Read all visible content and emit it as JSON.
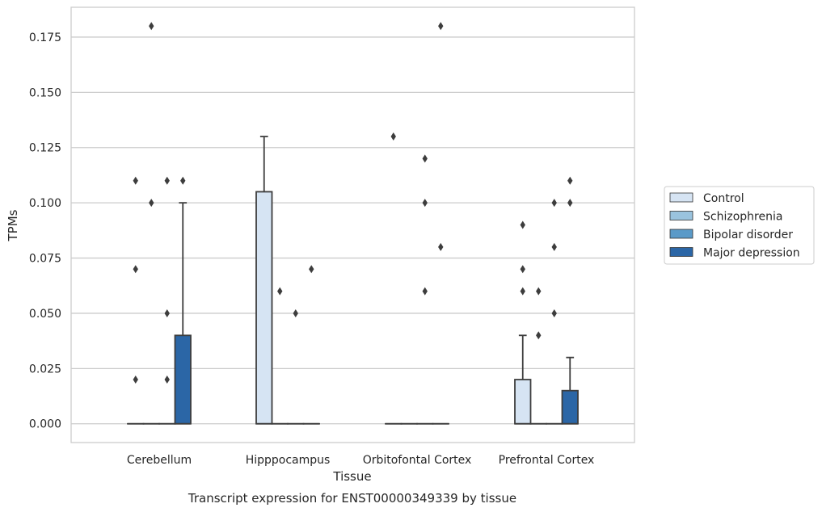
{
  "chart_data": {
    "type": "box",
    "caption": "Transcript expression for ENST00000349339 by tissue",
    "xlabel": "Tissue",
    "ylabel": "TPMs",
    "ylim": [
      -0.0085,
      0.1885
    ],
    "yticks": [
      0.0,
      0.025,
      0.05,
      0.075,
      0.1,
      0.125,
      0.15,
      0.175
    ],
    "ytick_labels": [
      "0.000",
      "0.025",
      "0.050",
      "0.075",
      "0.100",
      "0.125",
      "0.150",
      "0.175"
    ],
    "grid": "horizontal",
    "legend_position": "right",
    "categories": [
      "Cerebellum",
      "Hipppocampus",
      "Orbitofontal Cortex",
      "Prefrontal Cortex"
    ],
    "series": [
      {
        "name": "Control",
        "color": "#d6e4f3"
      },
      {
        "name": "Schizophrenia",
        "color": "#9ac3de"
      },
      {
        "name": "Bipolar disorder",
        "color": "#5a9ac8"
      },
      {
        "name": "Major depression",
        "color": "#2b66a6"
      }
    ],
    "boxes": [
      {
        "category": 0,
        "series": 0,
        "q1": 0,
        "median": 0,
        "q3": 0,
        "whisker_low": 0,
        "whisker_high": 0,
        "outliers": [
          0.02,
          0.07,
          0.11
        ]
      },
      {
        "category": 0,
        "series": 1,
        "q1": 0,
        "median": 0,
        "q3": 0,
        "whisker_low": 0,
        "whisker_high": 0,
        "outliers": [
          0.1,
          0.18
        ]
      },
      {
        "category": 0,
        "series": 2,
        "q1": 0,
        "median": 0,
        "q3": 0,
        "whisker_low": 0,
        "whisker_high": 0,
        "outliers": [
          0.02,
          0.05,
          0.11
        ]
      },
      {
        "category": 0,
        "series": 3,
        "q1": 0,
        "median": 0,
        "q3": 0.04,
        "whisker_low": 0,
        "whisker_high": 0.1,
        "outliers": [
          0.11
        ]
      },
      {
        "category": 1,
        "series": 0,
        "q1": 0,
        "median": 0,
        "q3": 0.105,
        "whisker_low": 0,
        "whisker_high": 0.13,
        "outliers": []
      },
      {
        "category": 1,
        "series": 1,
        "q1": 0,
        "median": 0,
        "q3": 0,
        "whisker_low": 0,
        "whisker_high": 0,
        "outliers": [
          0.06
        ]
      },
      {
        "category": 1,
        "series": 2,
        "q1": 0,
        "median": 0,
        "q3": 0,
        "whisker_low": 0,
        "whisker_high": 0,
        "outliers": [
          0.05
        ]
      },
      {
        "category": 1,
        "series": 3,
        "q1": 0,
        "median": 0,
        "q3": 0,
        "whisker_low": 0,
        "whisker_high": 0,
        "outliers": [
          0.07
        ]
      },
      {
        "category": 2,
        "series": 0,
        "q1": 0,
        "median": 0,
        "q3": 0,
        "whisker_low": 0,
        "whisker_high": 0,
        "outliers": [
          0.13
        ]
      },
      {
        "category": 2,
        "series": 1,
        "q1": 0,
        "median": 0,
        "q3": 0,
        "whisker_low": 0,
        "whisker_high": 0,
        "outliers": []
      },
      {
        "category": 2,
        "series": 2,
        "q1": 0,
        "median": 0,
        "q3": 0,
        "whisker_low": 0,
        "whisker_high": 0,
        "outliers": [
          0.06,
          0.1,
          0.12
        ]
      },
      {
        "category": 2,
        "series": 3,
        "q1": 0,
        "median": 0,
        "q3": 0,
        "whisker_low": 0,
        "whisker_high": 0,
        "outliers": [
          0.08,
          0.18
        ]
      },
      {
        "category": 3,
        "series": 0,
        "q1": 0,
        "median": 0,
        "q3": 0.02,
        "whisker_low": 0,
        "whisker_high": 0.04,
        "outliers": [
          0.06,
          0.07,
          0.09
        ]
      },
      {
        "category": 3,
        "series": 1,
        "q1": 0,
        "median": 0,
        "q3": 0,
        "whisker_low": 0,
        "whisker_high": 0,
        "outliers": [
          0.04,
          0.06
        ]
      },
      {
        "category": 3,
        "series": 2,
        "q1": 0,
        "median": 0,
        "q3": 0,
        "whisker_low": 0,
        "whisker_high": 0,
        "outliers": [
          0.05,
          0.08,
          0.1
        ]
      },
      {
        "category": 3,
        "series": 3,
        "q1": 0,
        "median": 0,
        "q3": 0.015,
        "whisker_low": 0,
        "whisker_high": 0.03,
        "outliers": [
          0.1,
          0.11
        ]
      }
    ]
  }
}
